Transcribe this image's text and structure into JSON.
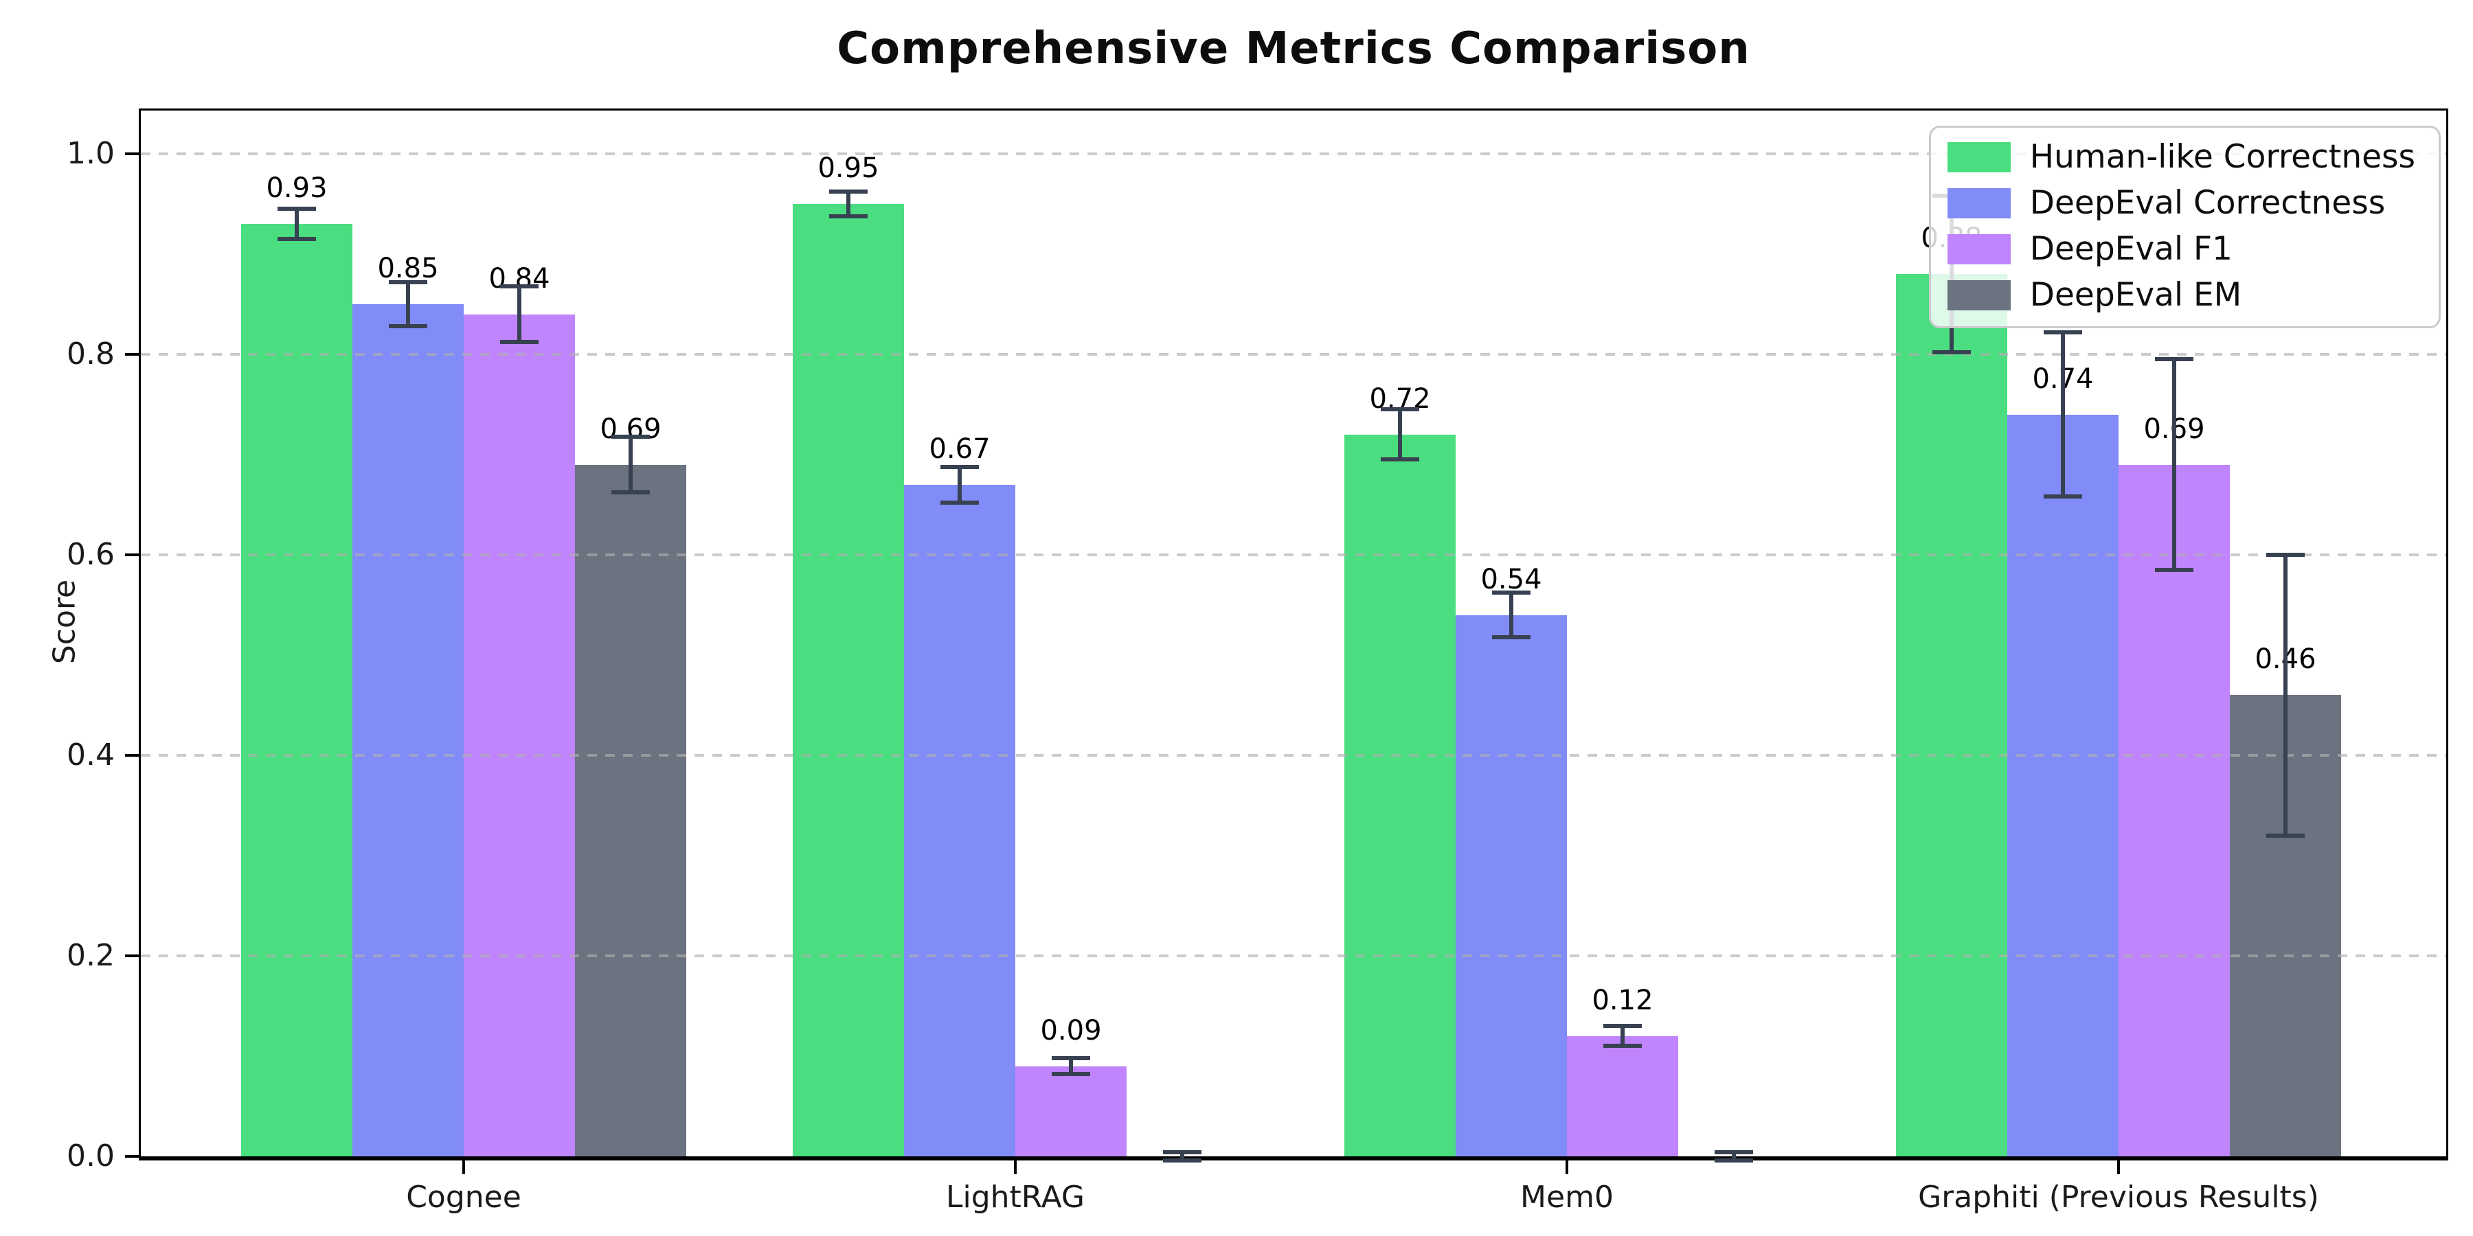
{
  "chart_data": {
    "type": "bar",
    "title": "Comprehensive Metrics Comparison",
    "ylabel": "Score",
    "xlabel": "",
    "categories": [
      "Cognee",
      "LightRAG",
      "Mem0",
      "Graphiti (Previous Results)"
    ],
    "series": [
      {
        "name": "Human-like Correctness",
        "color": "#4ade80",
        "values": [
          0.93,
          0.95,
          0.72,
          0.88
        ],
        "errors": [
          0.015,
          0.012,
          0.025,
          0.078
        ]
      },
      {
        "name": "DeepEval Correctness",
        "color": "#818cf8",
        "values": [
          0.85,
          0.67,
          0.54,
          0.74
        ],
        "errors": [
          0.022,
          0.018,
          0.022,
          0.082
        ]
      },
      {
        "name": "DeepEval F1",
        "color": "#c084fc",
        "values": [
          0.84,
          0.09,
          0.12,
          0.69
        ],
        "errors": [
          0.028,
          0.008,
          0.01,
          0.105
        ]
      },
      {
        "name": "DeepEval EM",
        "color": "#6b7280",
        "values": [
          0.69,
          0.0,
          0.0,
          0.46
        ],
        "errors": [
          0.028,
          0.004,
          0.004,
          0.14
        ]
      }
    ],
    "bar_value_labels": [
      [
        "0.93",
        "0.95",
        "0.72",
        "0.88"
      ],
      [
        "0.85",
        "0.67",
        "0.54",
        "0.74"
      ],
      [
        "0.84",
        "0.09",
        "0.12",
        "0.69"
      ],
      [
        "0.69",
        "",
        "",
        "0.46"
      ]
    ],
    "yticks": [
      "0.0",
      "0.2",
      "0.4",
      "0.6",
      "0.8",
      "1.0"
    ],
    "ytick_values": [
      0.0,
      0.2,
      0.4,
      0.6,
      0.8,
      1.0
    ],
    "ylim": [
      0,
      1.05
    ],
    "grid": "horizontal-dashed-over-bars",
    "legend_position": "upper right",
    "error_bar_color": "#374151"
  }
}
